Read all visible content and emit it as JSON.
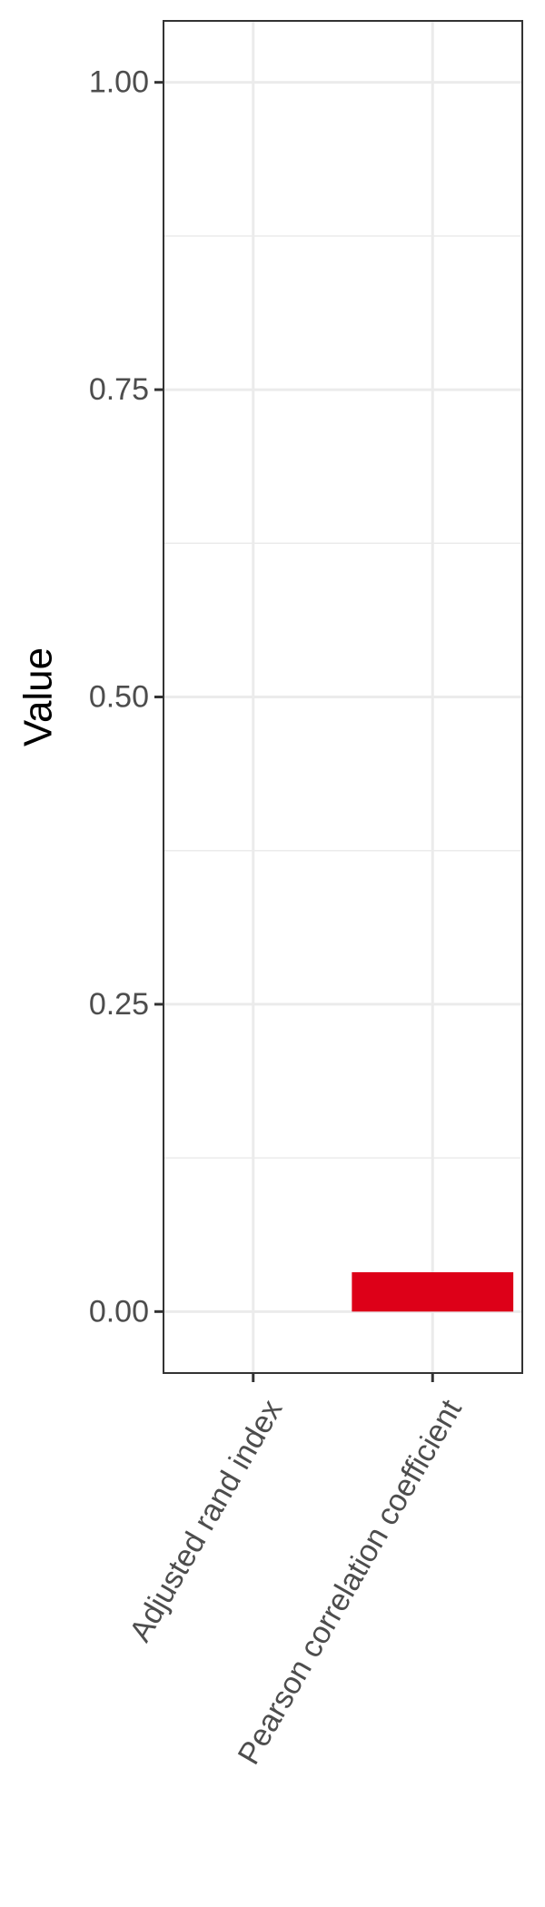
{
  "chart_data": {
    "type": "bar",
    "categories": [
      "Adjusted rand index",
      "Pearson correlation coefficient"
    ],
    "values": [
      0.0,
      0.032
    ],
    "ylabel": "Value",
    "xlabel": "",
    "title": "",
    "ylim": [
      -0.05,
      1.05
    ],
    "yticks": [
      {
        "value": 0.0,
        "label": "0.00"
      },
      {
        "value": 0.25,
        "label": "0.25"
      },
      {
        "value": 0.5,
        "label": "0.50"
      },
      {
        "value": 0.75,
        "label": "0.75"
      },
      {
        "value": 1.0,
        "label": "1.00"
      }
    ],
    "grid": true,
    "legend": "none",
    "bar_color": "#dd0018",
    "grid_color": "#ebebeb",
    "panel_border_color": "#333333"
  }
}
